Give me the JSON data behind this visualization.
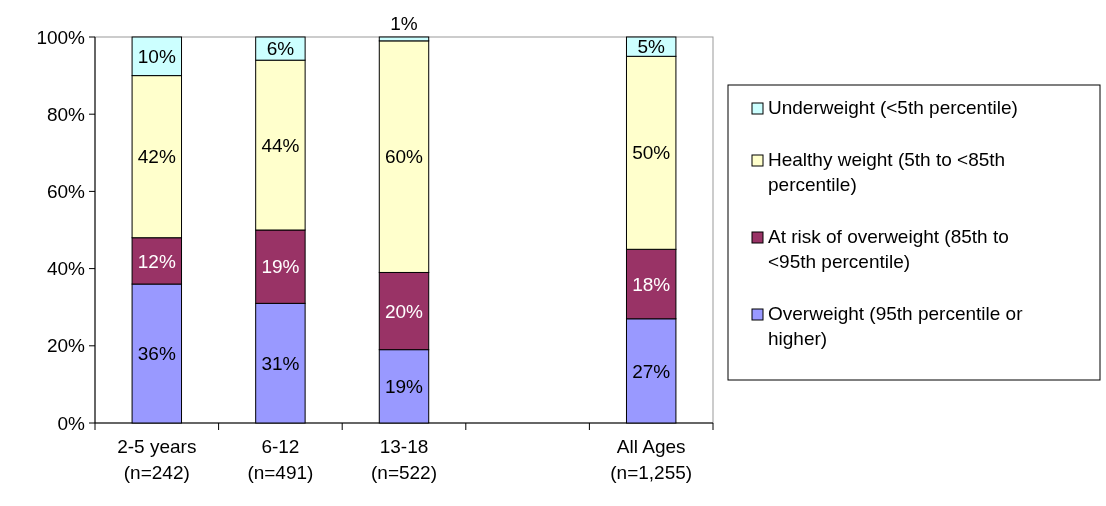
{
  "chart_data": {
    "type": "bar",
    "stacked": true,
    "categories": [
      "2-5 years\n(n=242)",
      "6-12\n(n=491)",
      "13-18\n(n=522)",
      null,
      "All Ages\n(n=1,255)"
    ],
    "series": [
      {
        "name": "Overweight (95th percentile or higher)",
        "color": "#9999ff",
        "values": [
          36,
          31,
          19,
          null,
          27
        ],
        "value_labels": [
          "36%",
          "31%",
          "19%",
          null,
          "27%"
        ]
      },
      {
        "name": "At risk of overweight (85th to <95th percentile)",
        "color": "#993366",
        "values": [
          12,
          19,
          20,
          null,
          18
        ],
        "value_labels": [
          "12%",
          "19%",
          "20%",
          null,
          "18%"
        ]
      },
      {
        "name": "Healthy weight (5th to <85th percentile)",
        "color": "#ffffcc",
        "values": [
          42,
          44,
          60,
          null,
          50
        ],
        "value_labels": [
          "42%",
          "44%",
          "60%",
          null,
          "50%"
        ]
      },
      {
        "name": "Underweight (<5th percentile)",
        "color": "#ccffff",
        "values": [
          10,
          6,
          1,
          null,
          5
        ],
        "value_labels": [
          "10%",
          "6%",
          "1%",
          null,
          "5%"
        ]
      }
    ],
    "ylim": [
      0,
      100
    ],
    "yticks": [
      {
        "value": 0,
        "label": "0%"
      },
      {
        "value": 20,
        "label": "20%"
      },
      {
        "value": 40,
        "label": "40%"
      },
      {
        "value": 60,
        "label": "60%"
      },
      {
        "value": 80,
        "label": "80%"
      },
      {
        "value": 100,
        "label": "100%"
      }
    ],
    "grid": false,
    "legend": "right"
  }
}
